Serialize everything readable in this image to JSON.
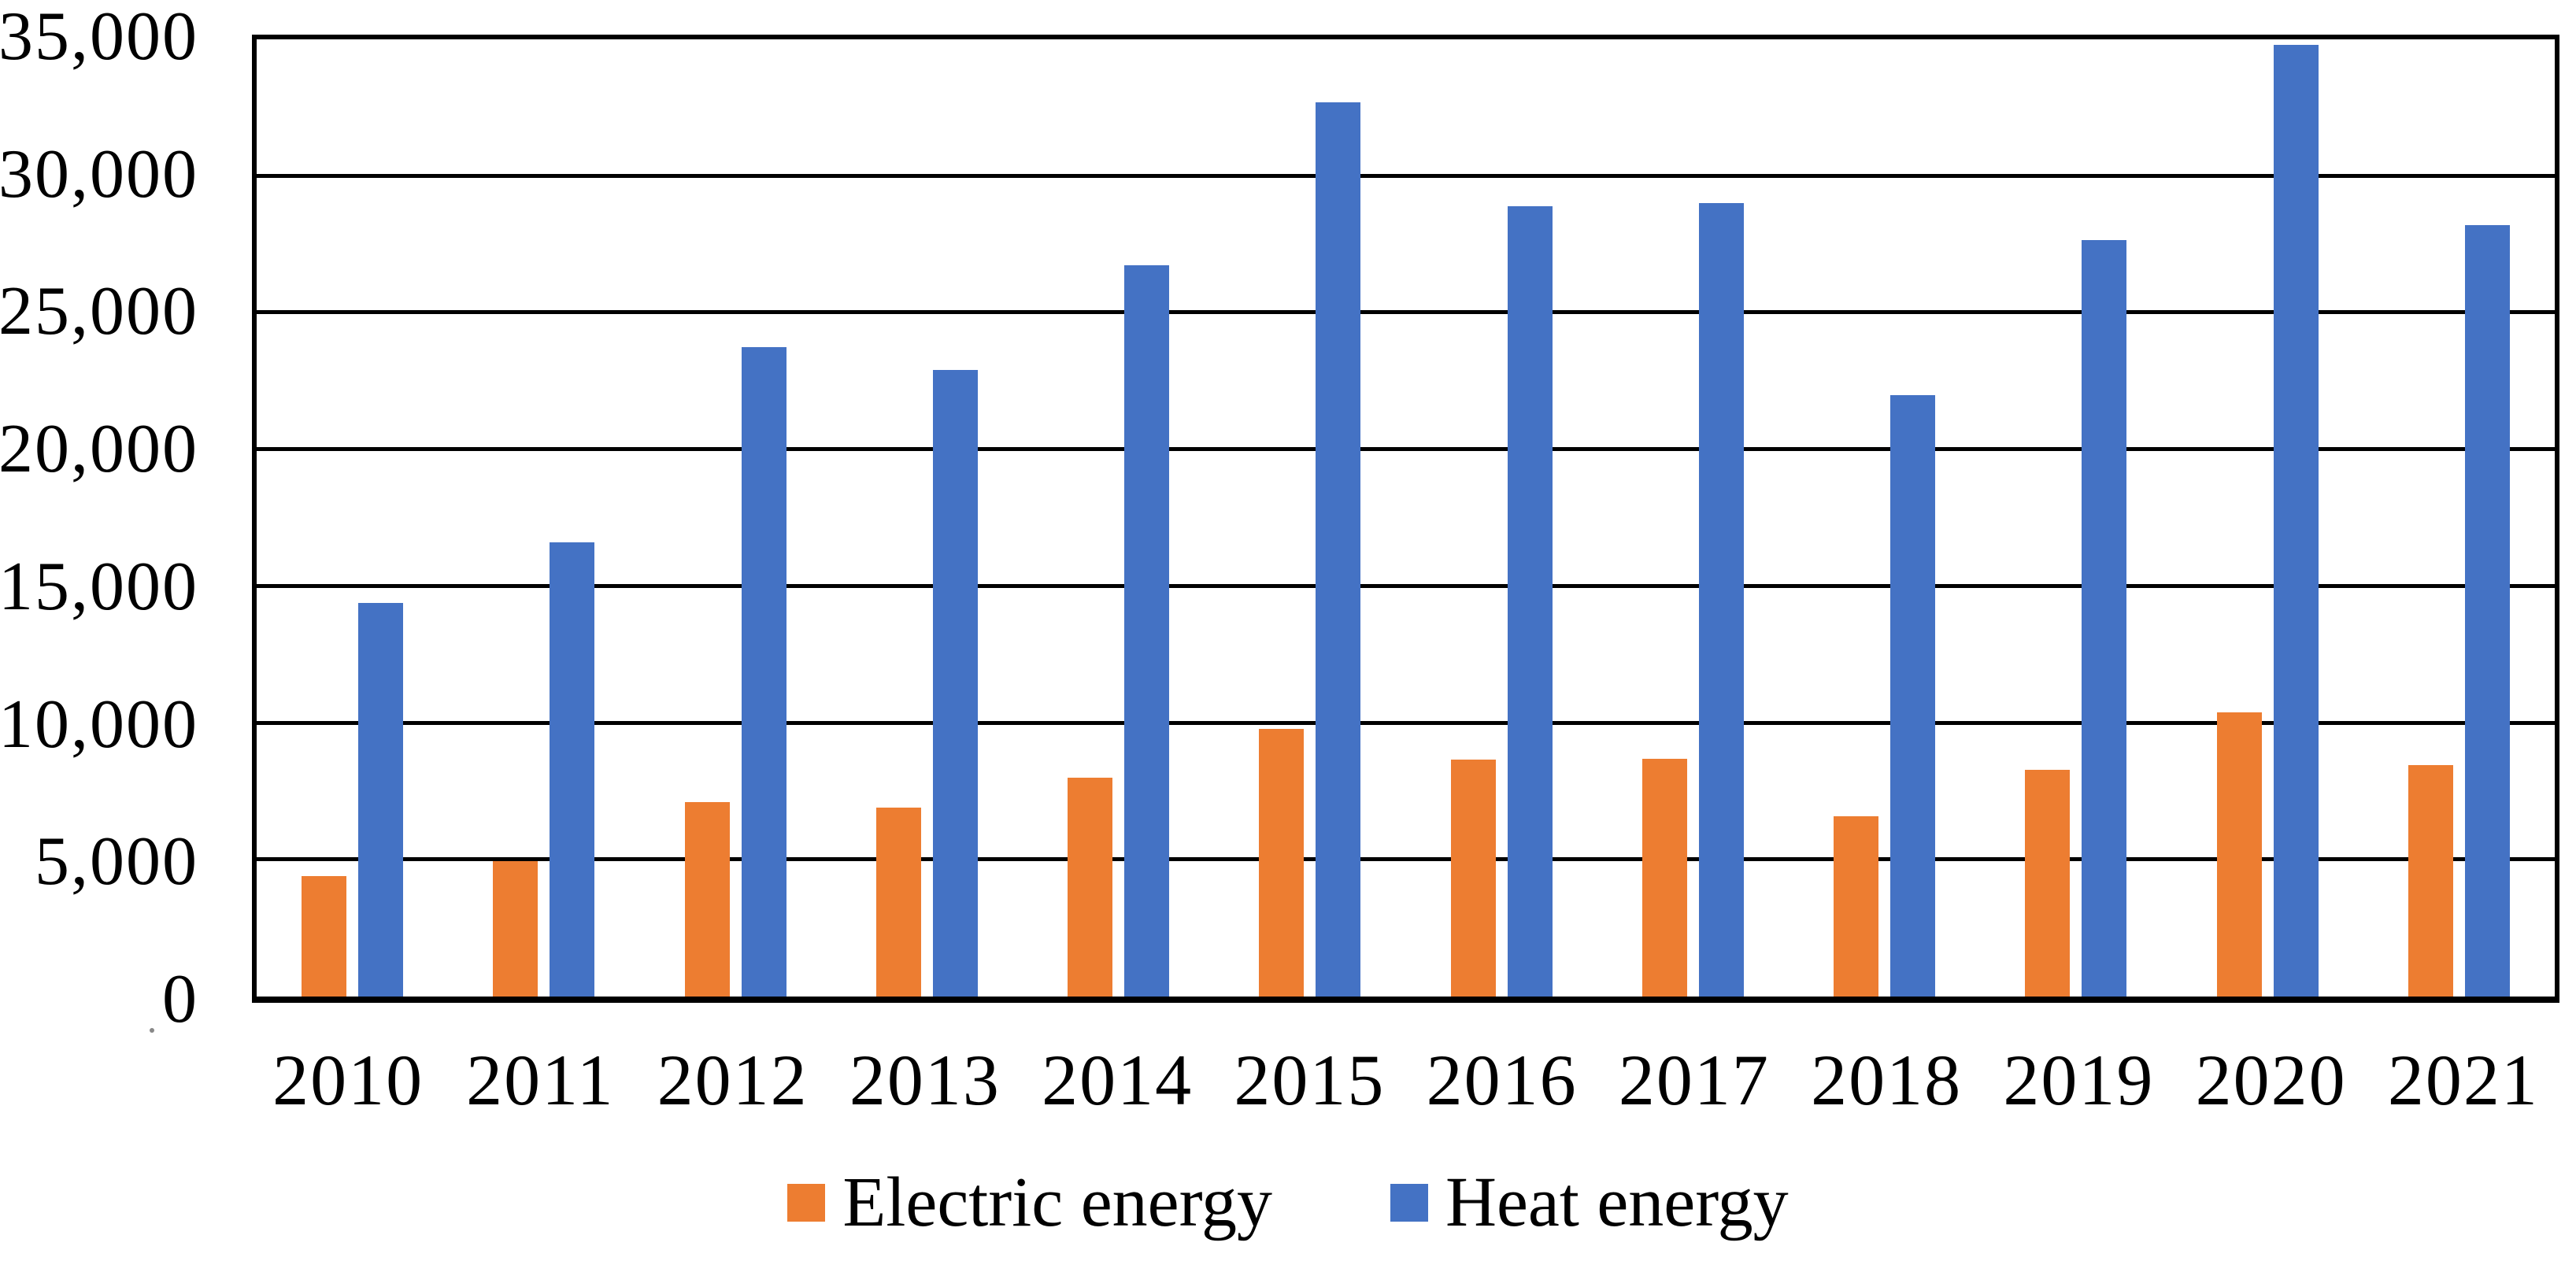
{
  "chart_data": {
    "type": "bar",
    "title": "",
    "categories": [
      "2010",
      "2011",
      "2012",
      "2013",
      "2014",
      "2015",
      "2016",
      "2017",
      "2018",
      "2019",
      "2020",
      "2021"
    ],
    "series": [
      {
        "name": "Electric energy",
        "color": "#ED7D31",
        "values": [
          4400,
          4950,
          7100,
          6900,
          8000,
          9800,
          8650,
          8700,
          6600,
          8300,
          10400,
          8450
        ]
      },
      {
        "name": "Heat energy",
        "color": "#4472C4",
        "values": [
          14400,
          16600,
          23750,
          22900,
          26750,
          32700,
          28900,
          29000,
          22000,
          27650,
          34800,
          28200
        ]
      }
    ],
    "xlabel": "",
    "ylabel": "",
    "ylim": [
      0,
      35000
    ],
    "ytick_interval": 5000,
    "ytick_labels": [
      "0",
      "5,000",
      "10,000",
      "15,000",
      "20,000",
      "25,000",
      "30,000",
      "35,000"
    ],
    "grid": true,
    "gridline_color": "#000000",
    "plot_border_color": "#000000",
    "background_color": "#FFFFFF",
    "legend_position": "bottom"
  }
}
